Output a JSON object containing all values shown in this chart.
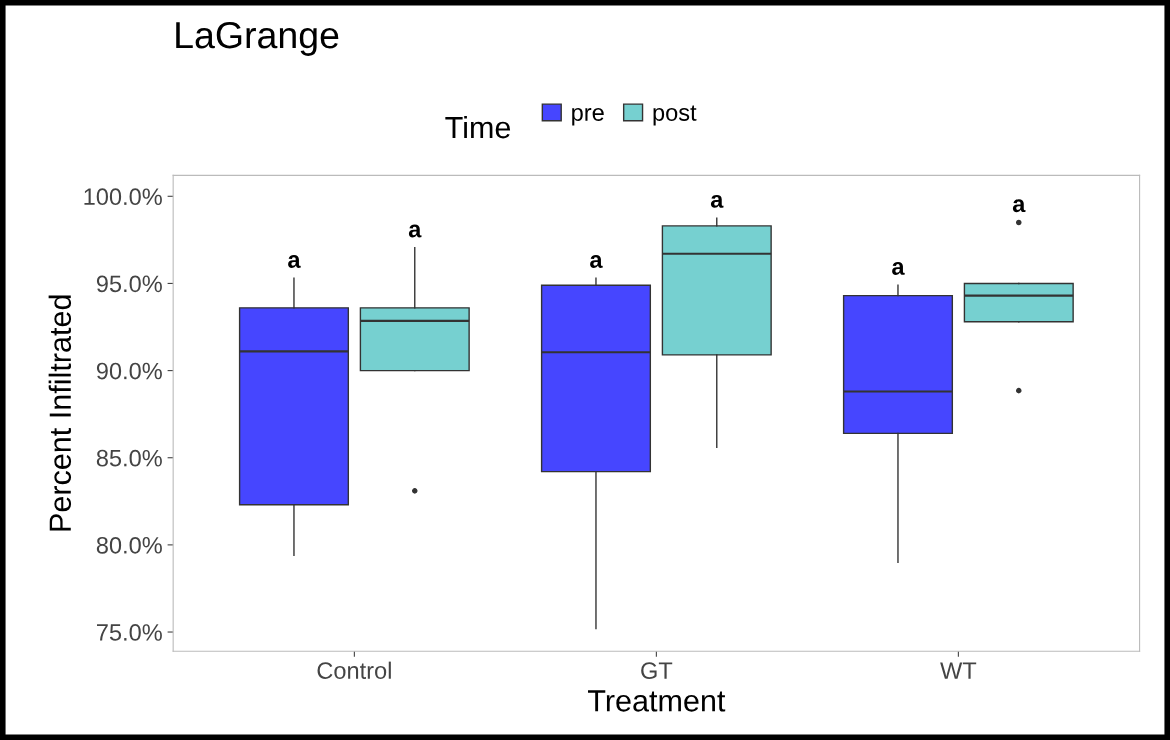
{
  "chart_data": {
    "type": "box",
    "title": "LaGrange",
    "xlabel": "Treatment",
    "ylabel": "Percent Infiltrated",
    "legend_title": "Time",
    "categories": [
      "Control",
      "GT",
      "WT"
    ],
    "series": [
      {
        "name": "pre",
        "color": "#4646ff",
        "boxes": [
          {
            "low": 79.4,
            "q1": 82.3,
            "median": 91.1,
            "q3": 93.6,
            "high": 95.3
          },
          {
            "low": 75.2,
            "q1": 84.2,
            "median": 91.05,
            "q3": 94.9,
            "high": 95.3
          },
          {
            "low": 79.0,
            "q1": 86.4,
            "median": 88.8,
            "q3": 94.3,
            "high": 94.9
          }
        ]
      },
      {
        "name": "post",
        "color": "#76d0d0",
        "boxes": [
          {
            "low": 90.0,
            "q1": 90.0,
            "median": 92.85,
            "q3": 93.6,
            "high": 97.05,
            "outliers": [
              83.1
            ]
          },
          {
            "low": 85.6,
            "q1": 90.9,
            "median": 96.7,
            "q3": 98.3,
            "high": 98.75
          },
          {
            "low": 92.8,
            "q1": 92.8,
            "median": 94.3,
            "q3": 95.0,
            "high": 95.0,
            "outliers": [
              98.5,
              88.85
            ]
          }
        ]
      }
    ],
    "annotations": [
      "a",
      "a",
      "a",
      "a",
      "a",
      "a"
    ],
    "ylim": [
      73.9,
      101.2
    ],
    "yticks": [
      {
        "value": 75,
        "label": "75.0%"
      },
      {
        "value": 80,
        "label": "80.0%"
      },
      {
        "value": 85,
        "label": "85.0%"
      },
      {
        "value": 90,
        "label": "90.0%"
      },
      {
        "value": 95,
        "label": "95.0%"
      },
      {
        "value": 100,
        "label": "100.0%"
      }
    ],
    "grid": false,
    "legend": "top"
  }
}
